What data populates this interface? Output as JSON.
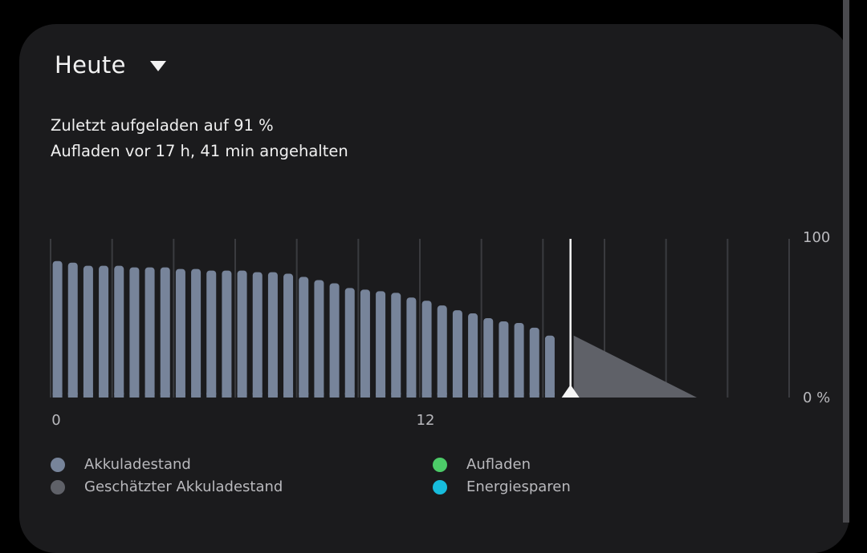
{
  "header": {
    "period_label": "Heute"
  },
  "status": {
    "last_charged": "Zuletzt aufgeladen auf 91 %",
    "charging_stopped": "Aufladen vor 17 h, 41 min angehalten"
  },
  "legend": [
    {
      "label": "Akkuladestand",
      "color": "#77849a"
    },
    {
      "label": "Geschätzter Akkuladestand",
      "color": "#5f6168"
    },
    {
      "label": "Aufladen",
      "color": "#4ccb68"
    },
    {
      "label": "Energiesparen",
      "color": "#17bcdc"
    }
  ],
  "chart_data": {
    "type": "bar",
    "x_tick_labels": [
      "0",
      "12"
    ],
    "y_tick_labels": [
      "100",
      "0 %"
    ],
    "ylim": [
      0,
      100
    ],
    "x_range_hours": [
      0,
      24
    ],
    "bar_interval_hours": 0.5,
    "series": [
      {
        "values": [
          86,
          85,
          83,
          83,
          83,
          82,
          82,
          82,
          81,
          81,
          80,
          80,
          80,
          79,
          79,
          78,
          76,
          74,
          72,
          69,
          68,
          67,
          66,
          63,
          61,
          58,
          55,
          53,
          50,
          48,
          47,
          44,
          39
        ]
      }
    ],
    "estimate": {
      "from_hour": 17,
      "to_hour": 21,
      "start_value": 39,
      "end_value": 0
    },
    "current_time_hour": 17,
    "grid": true
  }
}
